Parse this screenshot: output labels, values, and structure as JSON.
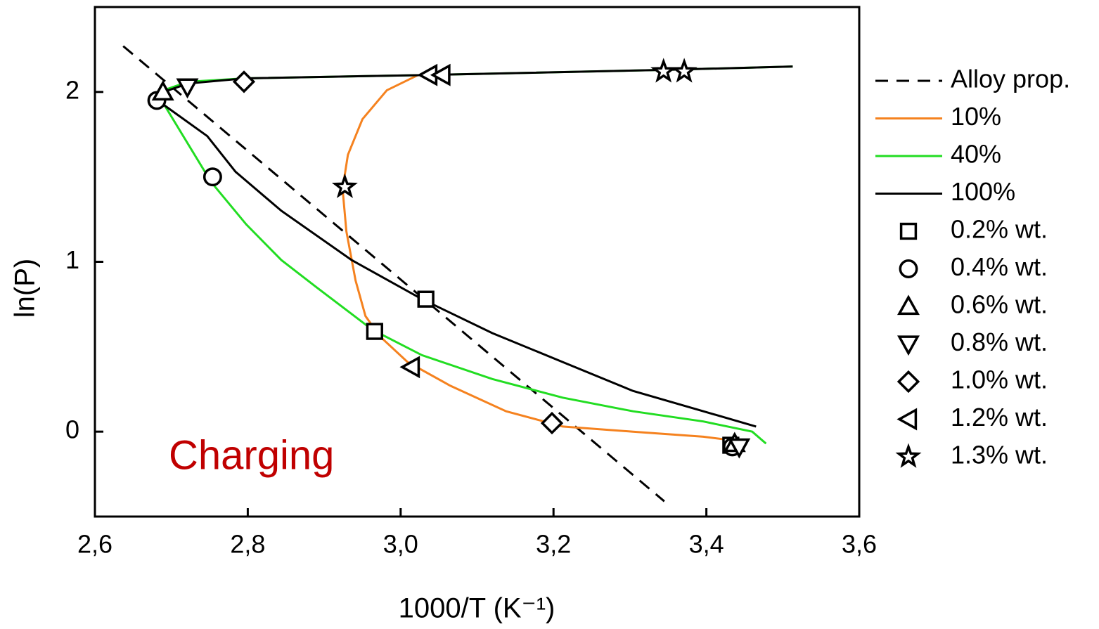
{
  "chart_data": {
    "type": "line",
    "xlabel": "1000/T (K⁻¹)",
    "ylabel": "ln(P)",
    "annotation": "Charging",
    "xlim": [
      2.6,
      3.6
    ],
    "ylim": [
      -0.5,
      2.5
    ],
    "xticks": [
      {
        "value": 2.6,
        "label": "2,6"
      },
      {
        "value": 2.8,
        "label": "2,8"
      },
      {
        "value": 3.0,
        "label": "3,0"
      },
      {
        "value": 3.2,
        "label": "3,2"
      },
      {
        "value": 3.4,
        "label": "3,4"
      },
      {
        "value": 3.6,
        "label": "3,6"
      }
    ],
    "yticks": [
      0,
      1,
      2
    ],
    "series": [
      {
        "name": "Alloy prop.",
        "color": "#000000",
        "dashed": true,
        "x": [
          2.637,
          3.345
        ],
        "values": [
          2.27,
          -0.41
        ]
      },
      {
        "name": "10%",
        "color": "#f5821f",
        "x": [
          3.023,
          2.982,
          2.95,
          2.931,
          2.924,
          2.929,
          2.941,
          2.954,
          2.973,
          3.009,
          3.065,
          3.138,
          3.212,
          3.304,
          3.396,
          3.432
        ],
        "values": [
          2.1,
          2.01,
          1.84,
          1.63,
          1.43,
          1.18,
          0.89,
          0.68,
          0.56,
          0.41,
          0.27,
          0.12,
          0.03,
          0.0,
          -0.03,
          -0.05
        ]
      },
      {
        "name": "40%",
        "color": "#22dd22",
        "x": [
          2.69,
          2.722,
          2.796,
          3.035,
          3.347,
          3.513,
          3.513,
          2.69,
          2.752,
          2.798,
          2.844,
          2.89,
          2.963,
          3.028,
          3.12,
          3.212,
          3.304,
          3.396,
          3.46,
          3.478
        ],
        "values": [
          2.01,
          2.06,
          2.08,
          2.1,
          2.13,
          2.15,
          null,
          1.93,
          1.47,
          1.22,
          1.01,
          0.85,
          0.6,
          0.45,
          0.31,
          0.2,
          0.12,
          0.06,
          0.0,
          -0.07
        ]
      },
      {
        "name": "100%",
        "color": "#000000",
        "x": [
          2.69,
          2.722,
          2.796,
          3.035,
          3.347,
          3.513,
          3.513,
          2.682,
          2.747,
          2.784,
          2.844,
          2.936,
          3.028,
          3.12,
          3.212,
          3.304,
          3.396,
          3.465
        ],
        "values": [
          2.0,
          2.05,
          2.08,
          2.1,
          2.13,
          2.15,
          null,
          1.95,
          1.74,
          1.53,
          1.3,
          1.01,
          0.78,
          0.58,
          0.41,
          0.24,
          0.12,
          0.03
        ]
      },
      {
        "name": "0.2% wt.",
        "marker": "square",
        "color": "#000000",
        "x": [
          2.966,
          3.033,
          3.432
        ],
        "values": [
          0.59,
          0.78,
          -0.08
        ]
      },
      {
        "name": "0.4% wt.",
        "marker": "circle",
        "color": "#000000",
        "x": [
          2.681,
          2.754,
          3.434
        ],
        "values": [
          1.95,
          1.5,
          -0.09
        ]
      },
      {
        "name": "0.6% wt.",
        "marker": "triangle-up",
        "color": "#000000",
        "x": [
          2.689,
          3.437
        ],
        "values": [
          2.0,
          -0.07
        ]
      },
      {
        "name": "0.8% wt.",
        "marker": "triangle-down",
        "color": "#000000",
        "x": [
          2.721,
          3.443
        ],
        "values": [
          2.03,
          -0.09
        ]
      },
      {
        "name": "1.0% wt.",
        "marker": "diamond",
        "color": "#000000",
        "x": [
          2.795,
          3.198
        ],
        "values": [
          2.06,
          0.05
        ]
      },
      {
        "name": "1.2% wt.",
        "marker": "triangle-left",
        "color": "#000000",
        "x": [
          3.037,
          3.054,
          3.014
        ],
        "values": [
          2.1,
          2.1,
          0.38
        ]
      },
      {
        "name": "1.3% wt.",
        "marker": "star",
        "color": "#000000",
        "x": [
          2.927,
          3.344,
          3.371
        ],
        "values": [
          1.44,
          2.12,
          2.12
        ]
      }
    ]
  }
}
